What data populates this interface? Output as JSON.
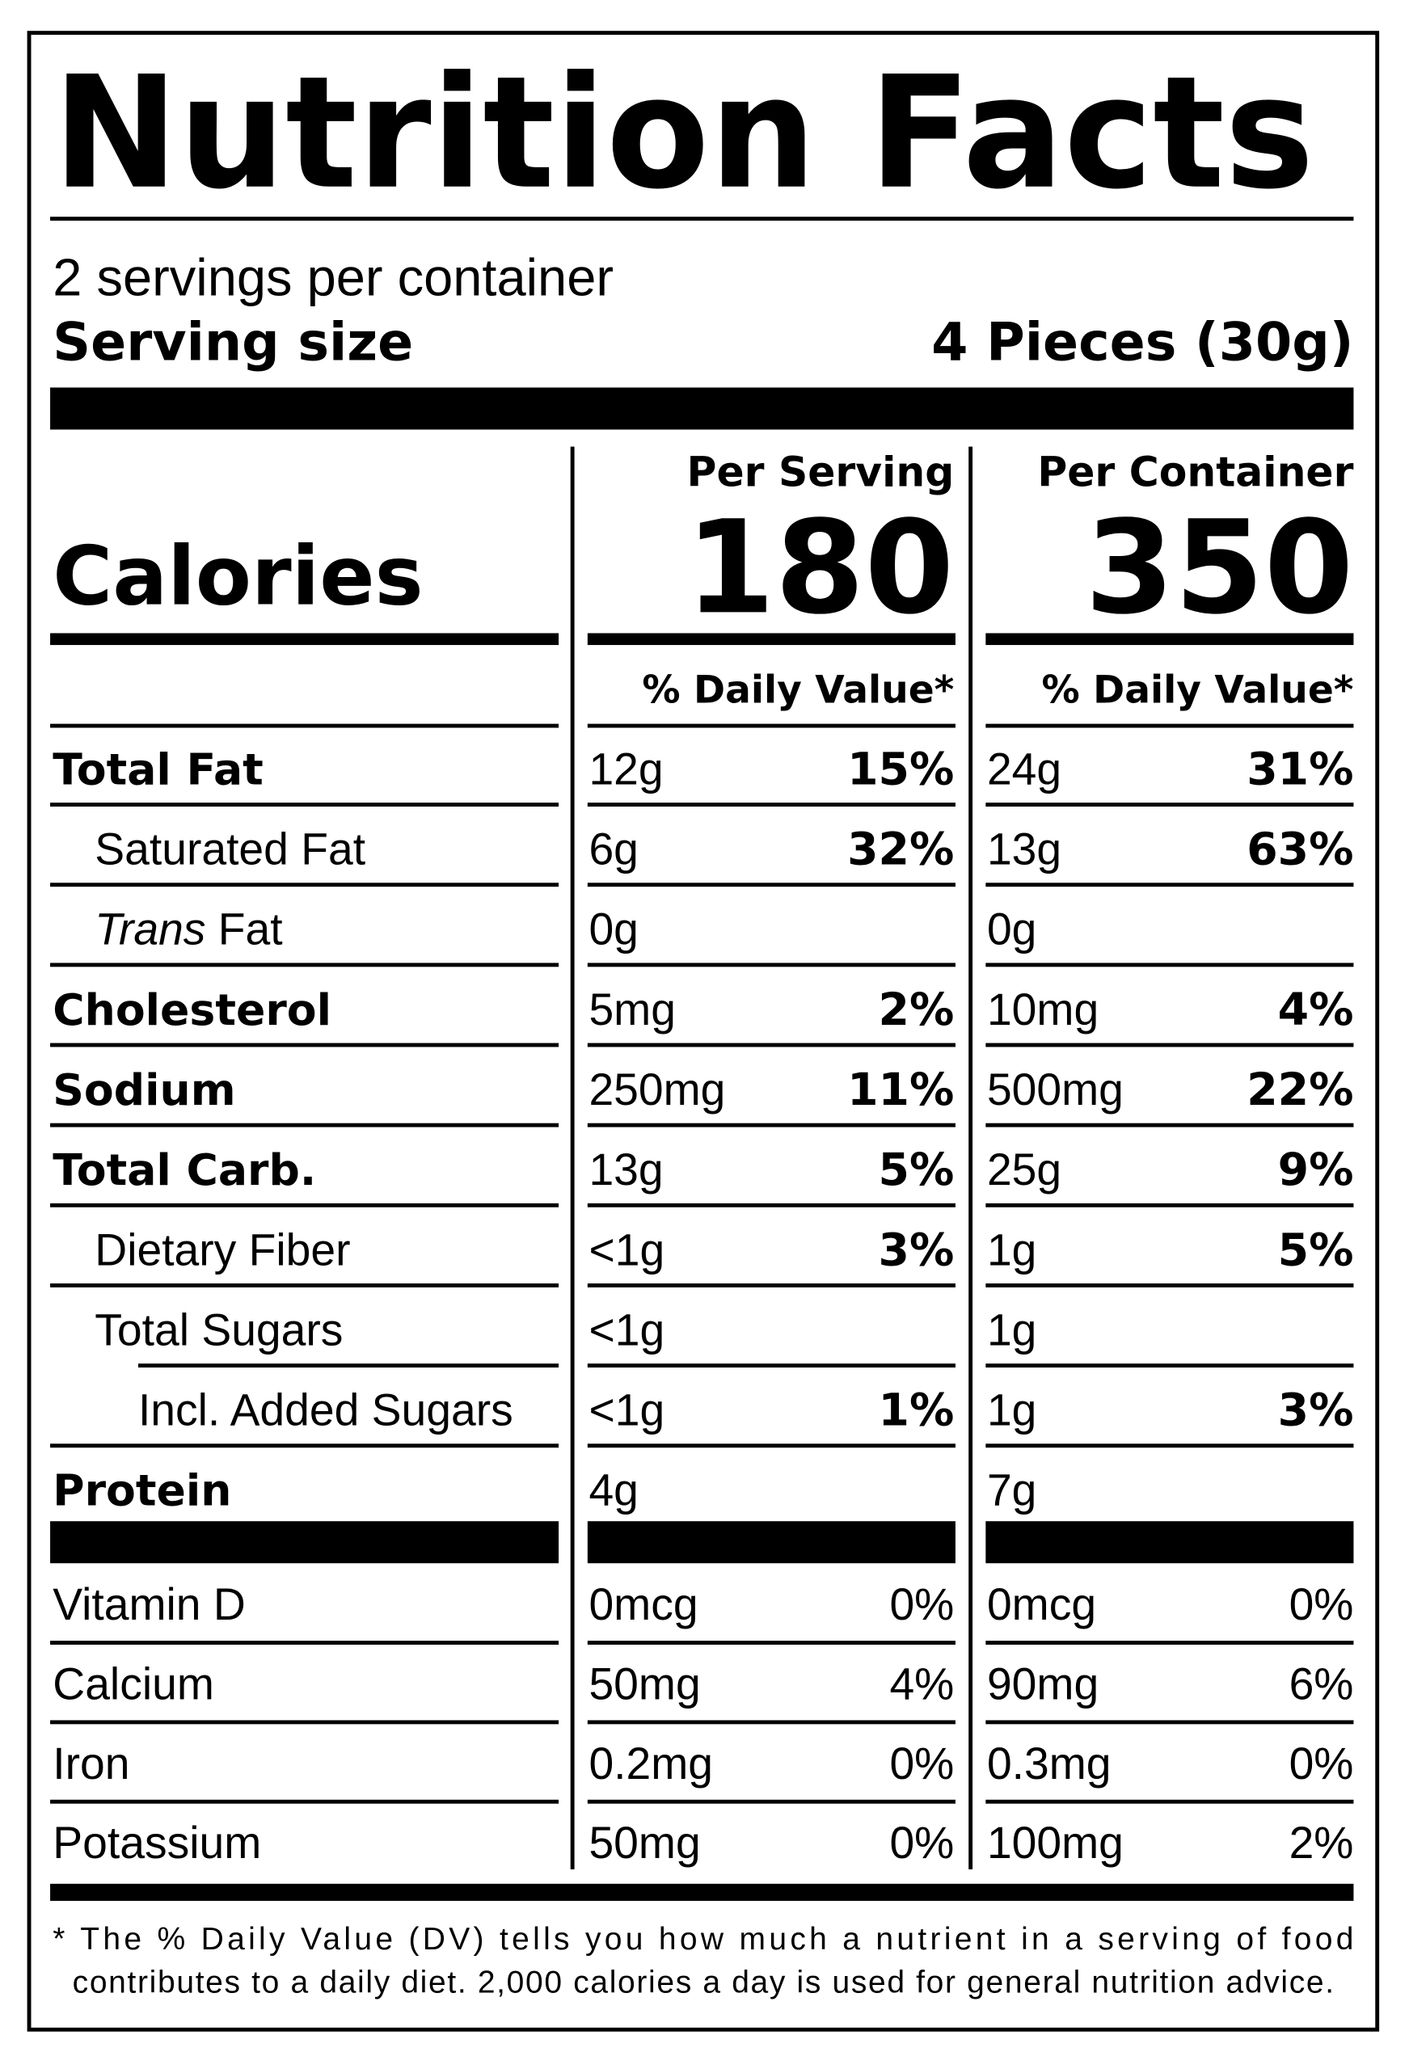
{
  "title": "Nutrition Facts",
  "servings": "2 servings per container",
  "serving_size": {
    "label": "Serving size",
    "value": "4 Pieces (30g)"
  },
  "calories_label": "Calories",
  "columns": [
    {
      "header": "Per Serving",
      "calories": "180",
      "dv_header": "% Daily Value*"
    },
    {
      "header": "Per Container",
      "calories": "350",
      "dv_header": "% Daily Value*"
    }
  ],
  "nutrients": [
    {
      "label": "Total Fat",
      "bold": true,
      "indent": 0,
      "values": [
        [
          "12g",
          "15%"
        ],
        [
          "24g",
          "31%"
        ]
      ]
    },
    {
      "label": "Saturated Fat",
      "bold": false,
      "indent": 1,
      "values": [
        [
          "6g",
          "32%"
        ],
        [
          "13g",
          "63%"
        ]
      ]
    },
    {
      "label_italic": "Trans",
      "label": " Fat",
      "bold": false,
      "indent": 1,
      "values": [
        [
          "0g"
        ],
        [
          "0g"
        ]
      ]
    },
    {
      "label": "Cholesterol",
      "bold": true,
      "indent": 0,
      "values": [
        [
          "5mg",
          "2%"
        ],
        [
          "10mg",
          "4%"
        ]
      ]
    },
    {
      "label": "Sodium",
      "bold": true,
      "indent": 0,
      "values": [
        [
          "250mg",
          "11%"
        ],
        [
          "500mg",
          "22%"
        ]
      ]
    },
    {
      "label": "Total Carb.",
      "bold": true,
      "indent": 0,
      "values": [
        [
          "13g",
          "5%"
        ],
        [
          "25g",
          "9%"
        ]
      ]
    },
    {
      "label": "Dietary Fiber",
      "bold": false,
      "indent": 1,
      "values": [
        [
          "<1g",
          "3%"
        ],
        [
          "1g",
          "5%"
        ]
      ]
    },
    {
      "label": "Total Sugars",
      "bold": false,
      "indent": 1,
      "values": [
        [
          "<1g"
        ],
        [
          "1g"
        ]
      ]
    },
    {
      "label": "Incl. Added Sugars",
      "bold": false,
      "indent": 2,
      "values": [
        [
          "<1g",
          "1%"
        ],
        [
          "1g",
          "3%"
        ]
      ]
    },
    {
      "label": "Protein",
      "bold": true,
      "indent": 0,
      "values": [
        [
          "4g"
        ],
        [
          "7g"
        ]
      ]
    }
  ],
  "vitamins": [
    {
      "label": "Vitamin D",
      "values": [
        [
          "0mcg",
          "0%"
        ],
        [
          "0mcg",
          "0%"
        ]
      ]
    },
    {
      "label": "Calcium",
      "values": [
        [
          "50mg",
          "4%"
        ],
        [
          "90mg",
          "6%"
        ]
      ]
    },
    {
      "label": "Iron",
      "values": [
        [
          "0.2mg",
          "0%"
        ],
        [
          "0.3mg",
          "0%"
        ]
      ]
    },
    {
      "label": "Potassium",
      "values": [
        [
          "50mg",
          "0%"
        ],
        [
          "100mg",
          "2%"
        ]
      ]
    }
  ],
  "footnote": [
    "* The % Daily Value (DV) tells you how much a nutrient in a serving of food",
    "contributes to a daily diet. 2,000 calories a day is used for general nutrition advice."
  ]
}
